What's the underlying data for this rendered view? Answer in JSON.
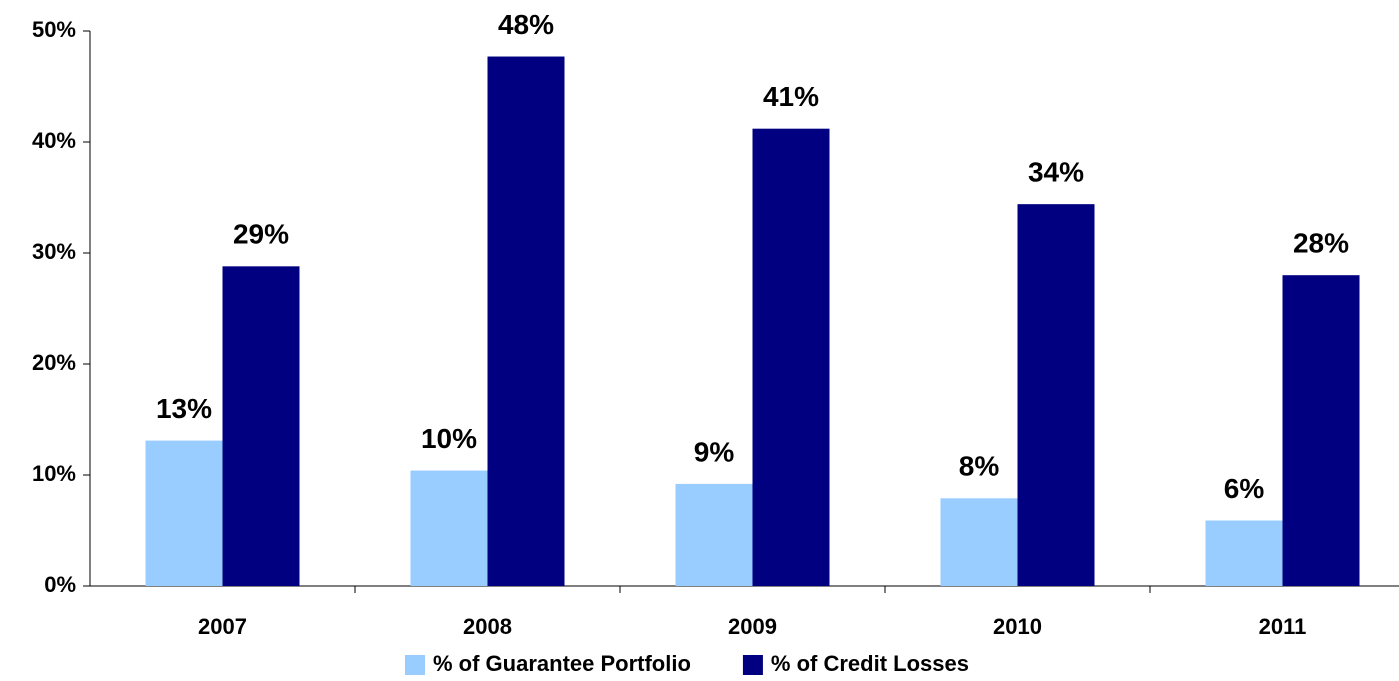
{
  "chart_data": {
    "type": "bar",
    "categories": [
      "2007",
      "2008",
      "2009",
      "2010",
      "2011"
    ],
    "series": [
      {
        "name": "% of Guarantee Portfolio",
        "color": "#99ccff",
        "values": [
          13.1,
          10.4,
          9.2,
          7.9,
          5.9
        ],
        "value_labels": [
          "13%",
          "10%",
          "9%",
          "8%",
          "6%"
        ]
      },
      {
        "name": "% of Credit Losses",
        "color": "#000080",
        "values": [
          28.8,
          47.7,
          41.2,
          34.4,
          28.0
        ],
        "value_labels": [
          "29%",
          "48%",
          "41%",
          "34%",
          "28%"
        ]
      }
    ],
    "ylim": [
      0,
      50
    ],
    "yticks": [
      {
        "value": 0,
        "label": "0%"
      },
      {
        "value": 10,
        "label": "10%"
      },
      {
        "value": 20,
        "label": "20%"
      },
      {
        "value": 30,
        "label": "30%"
      },
      {
        "value": 40,
        "label": "40%"
      },
      {
        "value": 50,
        "label": "50%"
      }
    ],
    "legend": "bottom"
  }
}
